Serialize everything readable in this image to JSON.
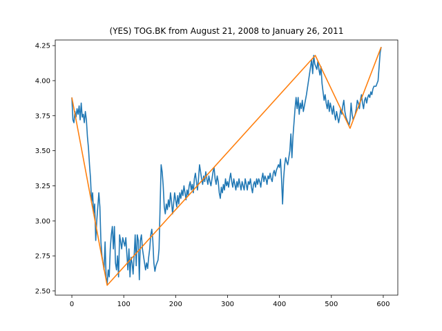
{
  "chart_data": {
    "type": "line",
    "title": "(YES) TOG.BK from August 21, 2008 to January 26, 2011",
    "xlabel": "",
    "ylabel": "",
    "xlim": [
      -32,
      628
    ],
    "ylim": [
      2.47,
      4.29
    ],
    "xticks": [
      0,
      100,
      200,
      300,
      400,
      500,
      600
    ],
    "yticks": [
      2.5,
      2.75,
      3.0,
      3.25,
      3.5,
      3.75,
      4.0,
      4.25
    ],
    "grid": false,
    "legend": "none",
    "series": [
      {
        "color": "#1f77b4",
        "points": [
          [
            0,
            3.88
          ],
          [
            2,
            3.72
          ],
          [
            4,
            3.7
          ],
          [
            6,
            3.78
          ],
          [
            8,
            3.74
          ],
          [
            10,
            3.8
          ],
          [
            12,
            3.76
          ],
          [
            14,
            3.82
          ],
          [
            16,
            3.72
          ],
          [
            18,
            3.84
          ],
          [
            20,
            3.74
          ],
          [
            22,
            3.76
          ],
          [
            24,
            3.7
          ],
          [
            26,
            3.78
          ],
          [
            28,
            3.72
          ],
          [
            30,
            3.6
          ],
          [
            32,
            3.52
          ],
          [
            34,
            3.4
          ],
          [
            36,
            3.3
          ],
          [
            38,
            3.13
          ],
          [
            40,
            3.2
          ],
          [
            42,
            3.05
          ],
          [
            44,
            3.12
          ],
          [
            46,
            2.86
          ],
          [
            48,
            3.0
          ],
          [
            50,
            3.1
          ],
          [
            52,
            3.2
          ],
          [
            54,
            3.1
          ],
          [
            56,
            2.85
          ],
          [
            58,
            2.75
          ],
          [
            60,
            2.7
          ],
          [
            62,
            2.65
          ],
          [
            64,
            2.85
          ],
          [
            66,
            2.6
          ],
          [
            68,
            2.55
          ],
          [
            70,
            2.65
          ],
          [
            72,
            2.6
          ],
          [
            74,
            2.8
          ],
          [
            76,
            2.9
          ],
          [
            78,
            2.96
          ],
          [
            80,
            2.8
          ],
          [
            82,
            2.96
          ],
          [
            84,
            2.7
          ],
          [
            86,
            2.65
          ],
          [
            88,
            2.75
          ],
          [
            90,
            2.6
          ],
          [
            92,
            2.9
          ],
          [
            94,
            2.85
          ],
          [
            96,
            2.8
          ],
          [
            98,
            2.88
          ],
          [
            100,
            2.85
          ],
          [
            102,
            2.82
          ],
          [
            104,
            2.88
          ],
          [
            106,
            2.76
          ],
          [
            108,
            2.65
          ],
          [
            110,
            2.8
          ],
          [
            112,
            2.6
          ],
          [
            114,
            2.74
          ],
          [
            116,
            2.7
          ],
          [
            118,
            2.62
          ],
          [
            120,
            2.75
          ],
          [
            122,
            2.9
          ],
          [
            124,
            2.68
          ],
          [
            126,
            2.9
          ],
          [
            128,
            2.86
          ],
          [
            130,
            2.58
          ],
          [
            132,
            2.86
          ],
          [
            134,
            2.9
          ],
          [
            136,
            2.8
          ],
          [
            138,
            2.75
          ],
          [
            140,
            2.7
          ],
          [
            142,
            2.65
          ],
          [
            144,
            2.7
          ],
          [
            146,
            2.66
          ],
          [
            148,
            2.74
          ],
          [
            150,
            2.8
          ],
          [
            152,
            2.9
          ],
          [
            154,
            2.94
          ],
          [
            156,
            2.86
          ],
          [
            158,
            2.7
          ],
          [
            160,
            2.64
          ],
          [
            162,
            2.68
          ],
          [
            164,
            2.7
          ],
          [
            166,
            2.72
          ],
          [
            168,
            2.8
          ],
          [
            170,
            3.1
          ],
          [
            172,
            3.4
          ],
          [
            174,
            3.35
          ],
          [
            176,
            3.25
          ],
          [
            178,
            3.1
          ],
          [
            180,
            3.05
          ],
          [
            182,
            3.12
          ],
          [
            184,
            3.08
          ],
          [
            186,
            3.15
          ],
          [
            188,
            3.1
          ],
          [
            190,
            3.2
          ],
          [
            192,
            3.14
          ],
          [
            194,
            3.05
          ],
          [
            196,
            3.12
          ],
          [
            198,
            3.2
          ],
          [
            200,
            3.15
          ],
          [
            202,
            3.1
          ],
          [
            204,
            3.18
          ],
          [
            206,
            3.12
          ],
          [
            208,
            3.2
          ],
          [
            210,
            3.16
          ],
          [
            212,
            3.22
          ],
          [
            214,
            3.18
          ],
          [
            216,
            3.25
          ],
          [
            218,
            3.2
          ],
          [
            220,
            3.15
          ],
          [
            222,
            3.22
          ],
          [
            224,
            3.18
          ],
          [
            226,
            3.25
          ],
          [
            228,
            3.28
          ],
          [
            230,
            3.22
          ],
          [
            232,
            3.26
          ],
          [
            234,
            3.2
          ],
          [
            236,
            3.3
          ],
          [
            238,
            3.34
          ],
          [
            240,
            3.28
          ],
          [
            242,
            3.22
          ],
          [
            244,
            3.3
          ],
          [
            246,
            3.4
          ],
          [
            248,
            3.35
          ],
          [
            250,
            3.3
          ],
          [
            252,
            3.26
          ],
          [
            254,
            3.32
          ],
          [
            256,
            3.28
          ],
          [
            258,
            3.35
          ],
          [
            260,
            3.3
          ],
          [
            262,
            3.26
          ],
          [
            264,
            3.32
          ],
          [
            266,
            3.28
          ],
          [
            268,
            3.25
          ],
          [
            270,
            3.3
          ],
          [
            272,
            3.35
          ],
          [
            274,
            3.38
          ],
          [
            276,
            3.3
          ],
          [
            278,
            3.26
          ],
          [
            280,
            3.32
          ],
          [
            282,
            3.28
          ],
          [
            284,
            3.2
          ],
          [
            286,
            3.16
          ],
          [
            288,
            3.24
          ],
          [
            290,
            3.2
          ],
          [
            292,
            3.26
          ],
          [
            294,
            3.22
          ],
          [
            296,
            3.3
          ],
          [
            298,
            3.25
          ],
          [
            300,
            3.28
          ],
          [
            302,
            3.24
          ],
          [
            304,
            3.3
          ],
          [
            306,
            3.34
          ],
          [
            308,
            3.28
          ],
          [
            310,
            3.24
          ],
          [
            312,
            3.3
          ],
          [
            314,
            3.26
          ],
          [
            316,
            3.22
          ],
          [
            318,
            3.28
          ],
          [
            320,
            3.24
          ],
          [
            322,
            3.3
          ],
          [
            324,
            3.26
          ],
          [
            326,
            3.22
          ],
          [
            328,
            3.28
          ],
          [
            330,
            3.25
          ],
          [
            332,
            3.22
          ],
          [
            334,
            3.3
          ],
          [
            336,
            3.26
          ],
          [
            338,
            3.22
          ],
          [
            340,
            3.28
          ],
          [
            342,
            3.26
          ],
          [
            344,
            3.3
          ],
          [
            346,
            3.24
          ],
          [
            348,
            3.2
          ],
          [
            350,
            3.26
          ],
          [
            352,
            3.28
          ],
          [
            354,
            3.24
          ],
          [
            356,
            3.3
          ],
          [
            358,
            3.26
          ],
          [
            360,
            3.3
          ],
          [
            362,
            3.28
          ],
          [
            364,
            3.24
          ],
          [
            366,
            3.3
          ],
          [
            368,
            3.34
          ],
          [
            370,
            3.28
          ],
          [
            372,
            3.32
          ],
          [
            374,
            3.3
          ],
          [
            376,
            3.26
          ],
          [
            378,
            3.32
          ],
          [
            380,
            3.3
          ],
          [
            382,
            3.34
          ],
          [
            384,
            3.3
          ],
          [
            386,
            3.28
          ],
          [
            388,
            3.34
          ],
          [
            390,
            3.36
          ],
          [
            392,
            3.32
          ],
          [
            394,
            3.36
          ],
          [
            396,
            3.38
          ],
          [
            398,
            3.4
          ],
          [
            400,
            3.38
          ],
          [
            402,
            3.44
          ],
          [
            404,
            3.3
          ],
          [
            406,
            3.12
          ],
          [
            408,
            3.3
          ],
          [
            410,
            3.4
          ],
          [
            412,
            3.45
          ],
          [
            414,
            3.42
          ],
          [
            416,
            3.4
          ],
          [
            418,
            3.45
          ],
          [
            420,
            3.5
          ],
          [
            422,
            3.62
          ],
          [
            424,
            3.45
          ],
          [
            426,
            3.6
          ],
          [
            428,
            3.7
          ],
          [
            430,
            3.8
          ],
          [
            432,
            3.88
          ],
          [
            434,
            3.8
          ],
          [
            436,
            3.88
          ],
          [
            438,
            3.76
          ],
          [
            440,
            3.84
          ],
          [
            442,
            3.8
          ],
          [
            444,
            3.86
          ],
          [
            446,
            3.78
          ],
          [
            448,
            3.82
          ],
          [
            450,
            3.86
          ],
          [
            452,
            3.9
          ],
          [
            454,
            3.95
          ],
          [
            456,
            4.0
          ],
          [
            458,
            4.05
          ],
          [
            460,
            4.1
          ],
          [
            462,
            4.15
          ],
          [
            464,
            4.05
          ],
          [
            466,
            4.18
          ],
          [
            468,
            4.12
          ],
          [
            470,
            4.1
          ],
          [
            472,
            4.08
          ],
          [
            474,
            4.14
          ],
          [
            476,
            4.08
          ],
          [
            478,
            4.04
          ],
          [
            480,
            4.1
          ],
          [
            482,
            3.98
          ],
          [
            484,
            3.92
          ],
          [
            486,
            3.86
          ],
          [
            488,
            3.9
          ],
          [
            490,
            3.84
          ],
          [
            492,
            3.8
          ],
          [
            494,
            3.86
          ],
          [
            496,
            3.78
          ],
          [
            498,
            3.84
          ],
          [
            500,
            3.8
          ],
          [
            502,
            3.76
          ],
          [
            504,
            3.82
          ],
          [
            506,
            3.76
          ],
          [
            508,
            3.72
          ],
          [
            510,
            3.78
          ],
          [
            512,
            3.74
          ],
          [
            514,
            3.7
          ],
          [
            516,
            3.74
          ],
          [
            518,
            3.8
          ],
          [
            520,
            3.76
          ],
          [
            522,
            3.82
          ],
          [
            524,
            3.86
          ],
          [
            526,
            3.78
          ],
          [
            528,
            3.74
          ],
          [
            530,
            3.72
          ],
          [
            532,
            3.7
          ],
          [
            534,
            3.68
          ],
          [
            536,
            3.72
          ],
          [
            538,
            3.84
          ],
          [
            540,
            3.76
          ],
          [
            542,
            3.72
          ],
          [
            544,
            3.74
          ],
          [
            546,
            3.76
          ],
          [
            548,
            3.8
          ],
          [
            550,
            3.86
          ],
          [
            552,
            3.84
          ],
          [
            554,
            3.8
          ],
          [
            556,
            3.86
          ],
          [
            558,
            3.9
          ],
          [
            560,
            3.84
          ],
          [
            562,
            3.8
          ],
          [
            564,
            3.86
          ],
          [
            566,
            3.88
          ],
          [
            568,
            3.84
          ],
          [
            570,
            3.88
          ],
          [
            572,
            3.9
          ],
          [
            574,
            3.88
          ],
          [
            576,
            3.92
          ],
          [
            578,
            3.9
          ],
          [
            580,
            3.94
          ],
          [
            582,
            3.96
          ],
          [
            584,
            3.96
          ],
          [
            586,
            3.96
          ],
          [
            588,
            3.98
          ],
          [
            590,
            4.0
          ],
          [
            592,
            4.1
          ],
          [
            594,
            4.2
          ],
          [
            596,
            4.24
          ]
        ]
      },
      {
        "color": "#ff7f0e",
        "points": [
          [
            0,
            3.88
          ],
          [
            68,
            2.54
          ],
          [
            469,
            4.18
          ],
          [
            536,
            3.66
          ],
          [
            596,
            4.24
          ]
        ]
      }
    ]
  }
}
